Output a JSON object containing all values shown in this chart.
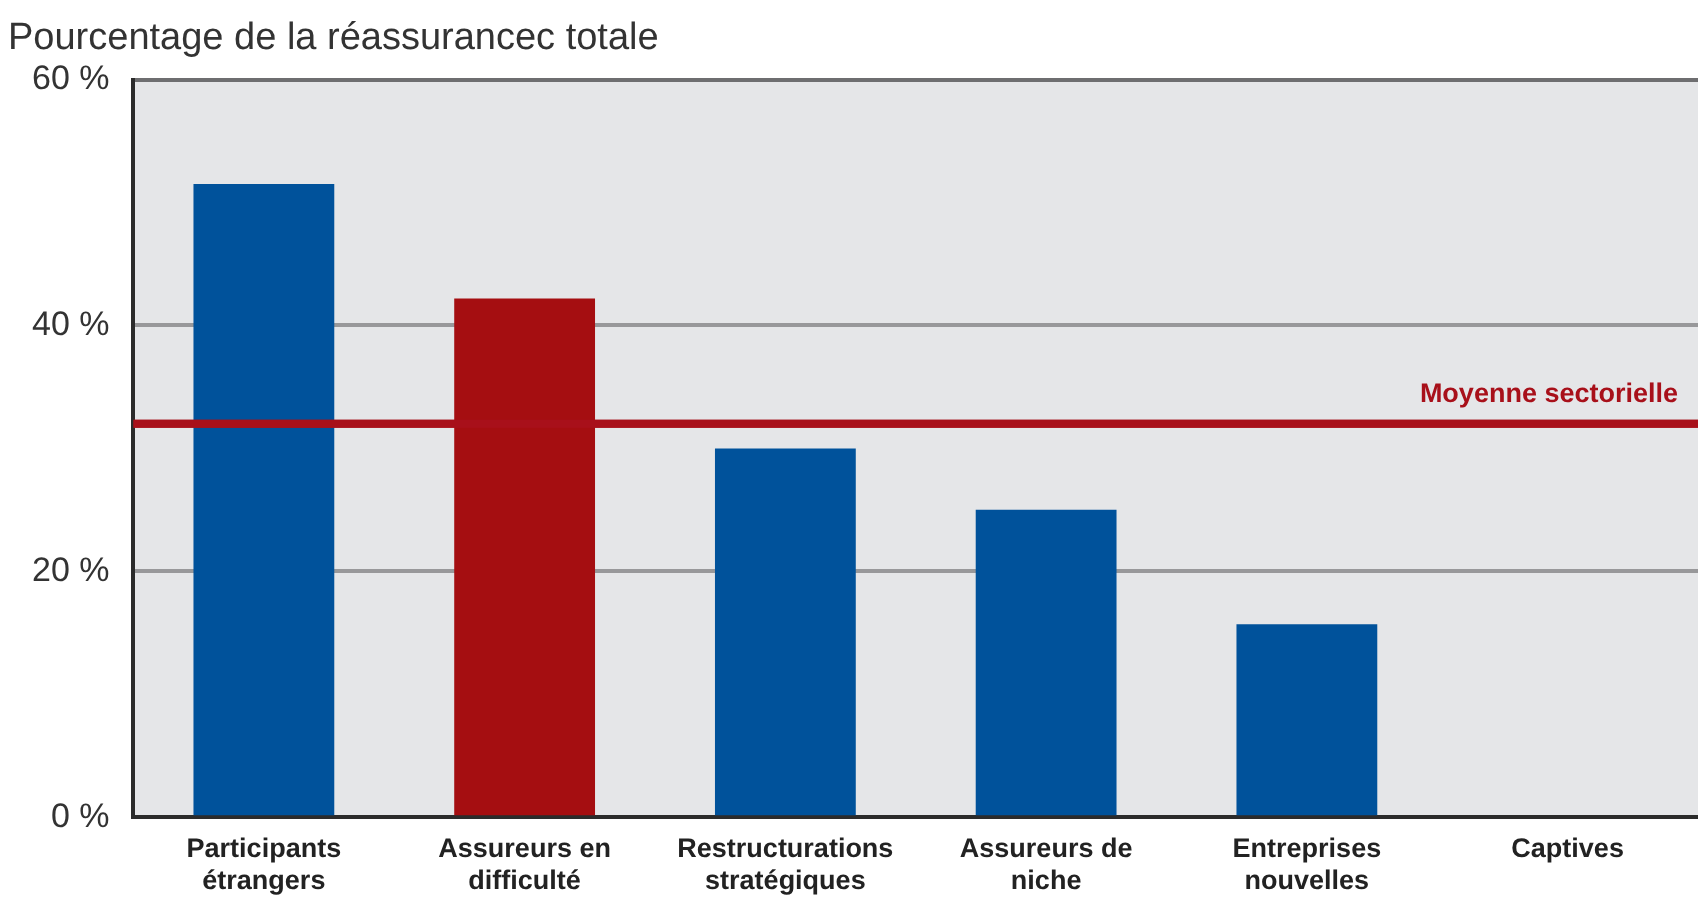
{
  "chart_data": {
    "type": "bar",
    "title": "Pourcentage de la réassurancec totale",
    "categories": [
      "Participants étrangers",
      "Assureurs en difficulté",
      "Restructurations stratégiques",
      "Assureurs de niche",
      "Entreprises nouvelles",
      "Captives"
    ],
    "values": [
      51.5,
      42.2,
      30,
      25,
      15.7,
      0
    ],
    "colors": [
      "#00529b",
      "#a50e11",
      "#00529b",
      "#00529b",
      "#00529b",
      "#00529b"
    ],
    "ylim": [
      0,
      60
    ],
    "yticks": [
      {
        "value": 0,
        "label": "0 %"
      },
      {
        "value": 20,
        "label": "20 %"
      },
      {
        "value": 40,
        "label": "40 %"
      },
      {
        "value": 60,
        "label": "60 %"
      }
    ],
    "grid": "y",
    "legend": false,
    "ref_lines": [
      {
        "axis": "y",
        "value": 32,
        "label": "Moyenne sectorielle",
        "color": "#a8101a"
      }
    ]
  }
}
